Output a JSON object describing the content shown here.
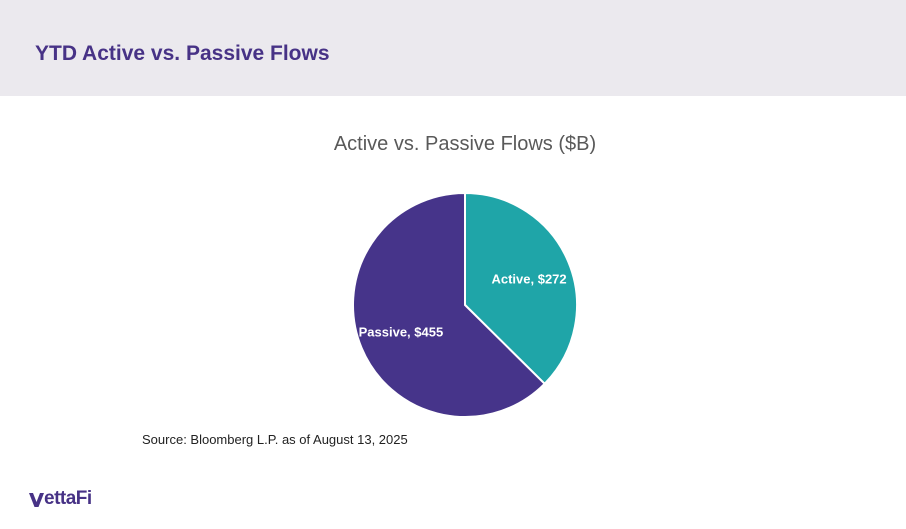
{
  "slide": {
    "title": "YTD Active vs. Passive Flows",
    "source": "Source: Bloomberg L.P. as of August 13, 2025",
    "logo_text": "ettaFi"
  },
  "colors": {
    "header_band": "#ebe9ee",
    "title": "#473286",
    "active": "#1fa5a8",
    "passive": "#46348a"
  },
  "chart_data": {
    "type": "pie",
    "title": "Active vs. Passive Flows ($B)",
    "unit": "$B",
    "slices": [
      {
        "name": "Active",
        "value": 272,
        "label": "Active, $272",
        "color": "#1fa5a8"
      },
      {
        "name": "Passive",
        "value": 455,
        "label": "Passive, $455",
        "color": "#46348a"
      }
    ],
    "start_angle": "12 o'clock",
    "direction": "clockwise",
    "legend": "none",
    "labels": "inside slices"
  }
}
